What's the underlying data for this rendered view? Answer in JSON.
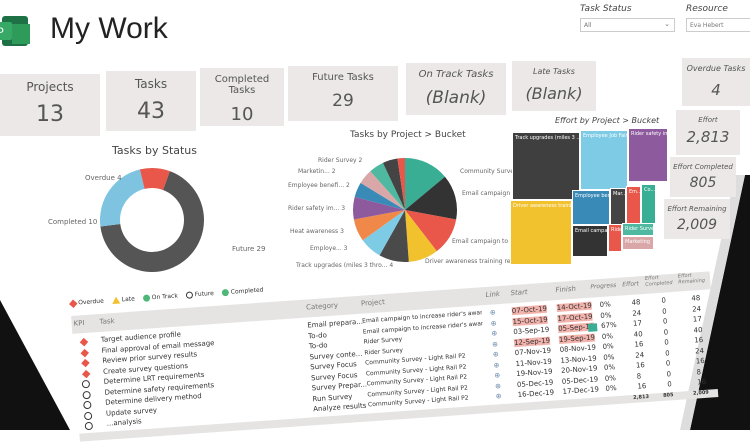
{
  "header": {
    "title": "My Work",
    "logo": "project-logo"
  },
  "filters": [
    {
      "label": "Task Status",
      "value": "All"
    },
    {
      "label": "Resource",
      "value": "Eva Hebert"
    }
  ],
  "kpis": [
    {
      "label": "Projects",
      "value": "13"
    },
    {
      "label": "Tasks",
      "value": "43"
    },
    {
      "label": "Completed Tasks",
      "value": "10"
    },
    {
      "label": "Future Tasks",
      "value": "29"
    },
    {
      "label": "On Track Tasks",
      "value": "(Blank)"
    },
    {
      "label": "Late Tasks",
      "value": "(Blank)"
    },
    {
      "label": "Overdue Tasks",
      "value": "4"
    }
  ],
  "effort_cards": [
    {
      "label": "Effort",
      "value": "2,813"
    },
    {
      "label": "Effort Completed",
      "value": "805"
    },
    {
      "label": "Effort Remaining",
      "value": "2,009"
    }
  ],
  "chart_data": [
    {
      "type": "pie",
      "variant": "donut",
      "title": "Tasks by Status",
      "series": [
        {
          "name": "Future",
          "value": 29,
          "color": "#555555"
        },
        {
          "name": "Completed",
          "value": 10,
          "color": "#7ec4e0"
        },
        {
          "name": "Overdue",
          "value": 4,
          "color": "#e8574a"
        }
      ],
      "labels": [
        "Future 29",
        "Completed 10",
        "Overdue 4"
      ]
    },
    {
      "type": "pie",
      "title": "Tasks by Project > Bucket",
      "slices": [
        {
          "label": "Community Survey - Light Rail P2",
          "value": 6,
          "color": "#3aae94"
        },
        {
          "label": "Email campaign t...",
          "value": 6,
          "color": "#333333"
        },
        {
          "label": "Email campaign to i...",
          "value": 5,
          "color": "#e8574a"
        },
        {
          "label": "Driver awareness training refresh",
          "value": 4,
          "color": "#f2c12e"
        },
        {
          "label": "Track upgrades (miles 3 thro...",
          "value": 4,
          "color": "#4a4a4a"
        },
        {
          "label": "Employe...",
          "value": 3,
          "color": "#7ecbe6"
        },
        {
          "label": "Heat awareness",
          "value": 3,
          "color": "#f0884a"
        },
        {
          "label": "Rider safety im...",
          "value": 3,
          "color": "#8e5a9e"
        },
        {
          "label": "Employee benefi...",
          "value": 2,
          "color": "#3a8ab8"
        },
        {
          "label": "Marketin...",
          "value": 2,
          "color": "#d9a7a7"
        },
        {
          "label": "Rider Survey",
          "value": 2,
          "color": "#4fb8a0"
        },
        {
          "label": "",
          "value": 2,
          "color": "#444444"
        },
        {
          "label": "",
          "value": 1,
          "color": "#e8574a"
        }
      ]
    },
    {
      "type": "treemap",
      "title": "Effort by Project > Bucket",
      "cells": [
        {
          "label": "Track upgrades (miles 3 ...",
          "color": "#3f3f3f"
        },
        {
          "label": "Employee Job Fair",
          "color": "#7ecbe6"
        },
        {
          "label": "Rider safety im...",
          "color": "#8e5a9e"
        },
        {
          "label": "Driver awareness trainin...",
          "color": "#f2c12e"
        },
        {
          "label": "Employee ben...",
          "color": "#3a8ab8"
        },
        {
          "label": "Mar...",
          "color": "#444444"
        },
        {
          "label": "Em...",
          "color": "#e8574a"
        },
        {
          "label": "Co...",
          "color": "#3aae94"
        },
        {
          "label": "Email campai...",
          "color": "#333333"
        },
        {
          "label": "Rider...",
          "color": "#e8574a"
        },
        {
          "label": "Rider Survey",
          "color": "#4fb8a0"
        },
        {
          "label": "Marketing",
          "color": "#d9a7a7"
        }
      ]
    }
  ],
  "legend": [
    "Overdue",
    "Late",
    "On Track",
    "Future",
    "Completed"
  ],
  "table": {
    "columns": [
      "KPI",
      "Task",
      "Category",
      "Project",
      "Link",
      "Start",
      "Finish",
      "Progress",
      "Effort",
      "Effort Completed",
      "Effort Remaining"
    ],
    "rows": [
      {
        "kpi": "overdue",
        "task": "Target audience profile",
        "category": "Email prepara...",
        "project": "Email campaign to increase rider's awaren...",
        "start": "07-Oct-19",
        "finish": "14-Oct-19",
        "progress": "0%",
        "effort": "48",
        "completed": "0",
        "remaining": "48",
        "late_start": true,
        "late_finish": true
      },
      {
        "kpi": "overdue",
        "task": "Final approval of email message",
        "category": "To-do",
        "project": "Email campaign to increase rider's awaren...",
        "start": "15-Oct-19",
        "finish": "17-Oct-19",
        "progress": "0%",
        "effort": "24",
        "completed": "0",
        "remaining": "24",
        "late_start": true,
        "late_finish": true
      },
      {
        "kpi": "overdue",
        "task": "Review prior survey results",
        "category": "To-do",
        "project": "Rider Survey",
        "start": "03-Sep-19",
        "finish": "05-Sep-19",
        "progress": "67%",
        "effort": "17",
        "completed": "0",
        "remaining": "17",
        "late_start": false,
        "late_finish": true
      },
      {
        "kpi": "overdue",
        "task": "Create survey questions",
        "category": "Survey conte...",
        "project": "Rider Survey",
        "start": "12-Sep-19",
        "finish": "19-Sep-19",
        "progress": "0%",
        "effort": "40",
        "completed": "0",
        "remaining": "40",
        "late_start": true,
        "late_finish": true
      },
      {
        "kpi": "future",
        "task": "Determine LRT requirements",
        "category": "Survey Focus",
        "project": "Community Survey - Light Rail P2",
        "start": "07-Nov-19",
        "finish": "08-Nov-19",
        "progress": "0%",
        "effort": "16",
        "completed": "0",
        "remaining": "16"
      },
      {
        "kpi": "future",
        "task": "Determine safety requirements",
        "category": "Survey Focus",
        "project": "Community Survey - Light Rail P2",
        "start": "11-Nov-19",
        "finish": "13-Nov-19",
        "progress": "0%",
        "effort": "24",
        "completed": "0",
        "remaining": "24"
      },
      {
        "kpi": "future",
        "task": "Determine delivery method",
        "category": "Survey Prepar...",
        "project": "Community Survey - Light Rail P2",
        "start": "19-Nov-19",
        "finish": "20-Nov-19",
        "progress": "0%",
        "effort": "16",
        "completed": "0",
        "remaining": "16"
      },
      {
        "kpi": "future",
        "task": "Update survey",
        "category": "Run Survey",
        "project": "Community Survey - Light Rail P2",
        "start": "05-Dec-19",
        "finish": "05-Dec-19",
        "progress": "0%",
        "effort": "8",
        "completed": "0",
        "remaining": "8"
      },
      {
        "kpi": "future",
        "task": "...analysis",
        "category": "Analyze results",
        "project": "Community Survey - Light Rail P2",
        "start": "16-Dec-19",
        "finish": "17-Dec-19",
        "progress": "0%",
        "effort": "16",
        "completed": "0",
        "remaining": "16"
      }
    ],
    "totals": {
      "effort": "2,813",
      "completed": "805",
      "remaining": "2,009"
    }
  }
}
